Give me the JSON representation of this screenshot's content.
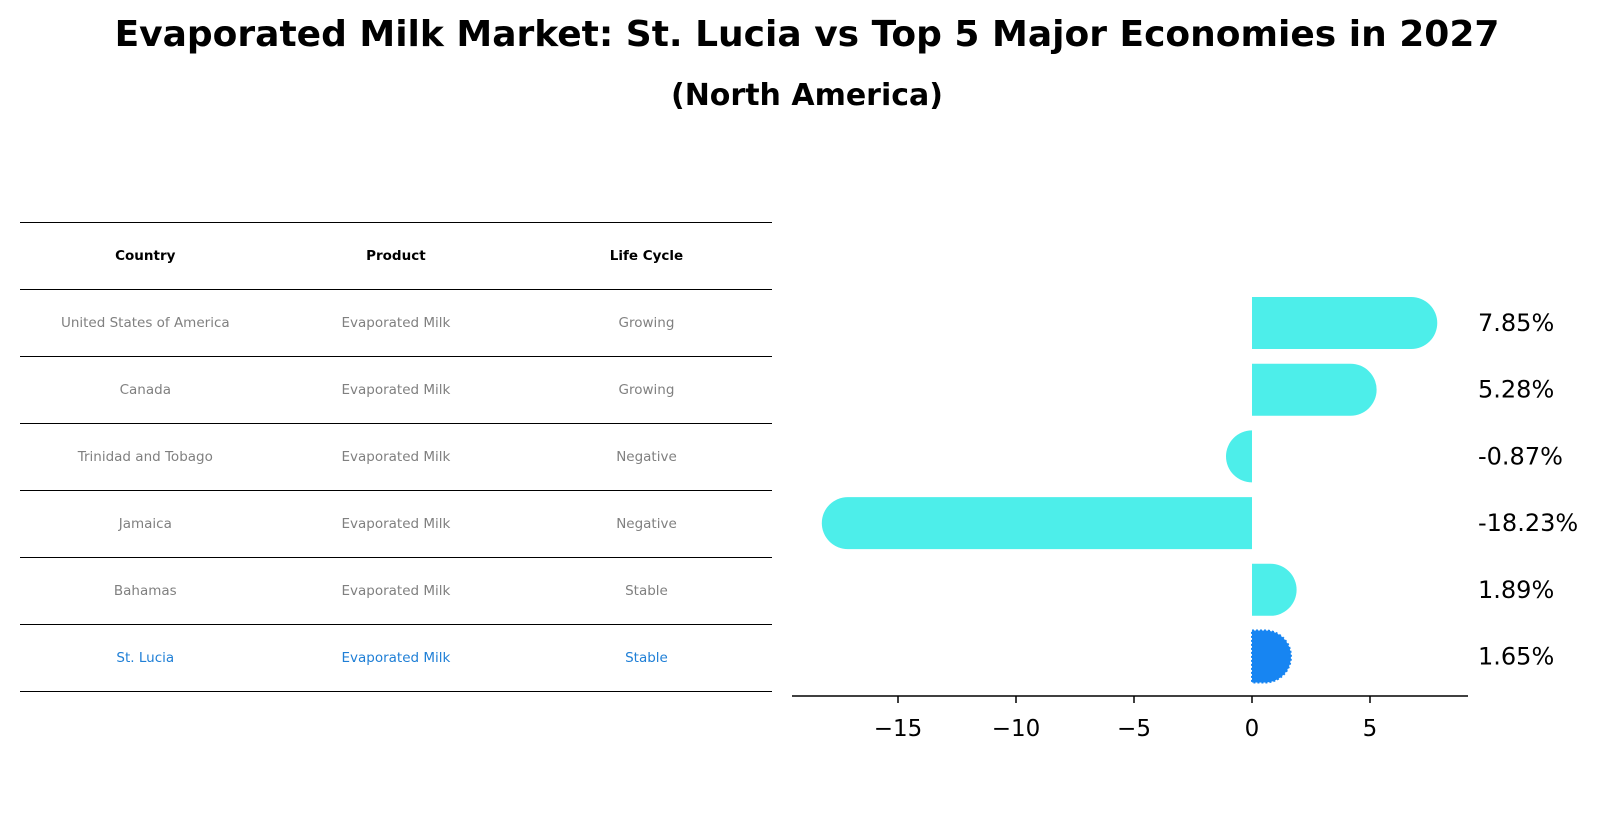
{
  "title": "Evaporated Milk Market: St. Lucia vs Top 5 Major Economies in 2027",
  "subtitle": "(North America)",
  "table": {
    "headers": [
      "Country",
      "Product",
      "Life Cycle"
    ],
    "rows": [
      {
        "country": "United States of America",
        "product": "Evaporated Milk",
        "life_cycle": "Growing",
        "highlight": false
      },
      {
        "country": "Canada",
        "product": "Evaporated Milk",
        "life_cycle": "Growing",
        "highlight": false
      },
      {
        "country": "Trinidad and Tobago",
        "product": "Evaporated Milk",
        "life_cycle": "Negative",
        "highlight": false
      },
      {
        "country": "Jamaica",
        "product": "Evaporated Milk",
        "life_cycle": "Negative",
        "highlight": false
      },
      {
        "country": "Bahamas",
        "product": "Evaporated Milk",
        "life_cycle": "Stable",
        "highlight": false
      },
      {
        "country": "St. Lucia",
        "product": "Evaporated Milk",
        "life_cycle": "Stable",
        "highlight": true
      }
    ]
  },
  "colors": {
    "bar": "#4deeea",
    "highlight_bar": "#1785f2",
    "highlight_text": "#1f7fd6",
    "table_text": "#808080"
  },
  "chart_data": {
    "type": "bar",
    "orientation": "horizontal",
    "categories": [
      "United States of America",
      "Canada",
      "Trinidad and Tobago",
      "Jamaica",
      "Bahamas",
      "St. Lucia"
    ],
    "values": [
      7.85,
      5.28,
      -0.87,
      -18.23,
      1.89,
      1.65
    ],
    "value_labels": [
      "7.85%",
      "5.28%",
      "-0.87%",
      "-18.23%",
      "1.89%",
      "1.65%"
    ],
    "highlight_index": 5,
    "xticks": [
      -15,
      -10,
      -5,
      0,
      5
    ],
    "xtick_labels": [
      "−15",
      "−10",
      "−5",
      "0",
      "5"
    ],
    "xlim": [
      -19.5,
      9.2
    ],
    "grid": false
  }
}
